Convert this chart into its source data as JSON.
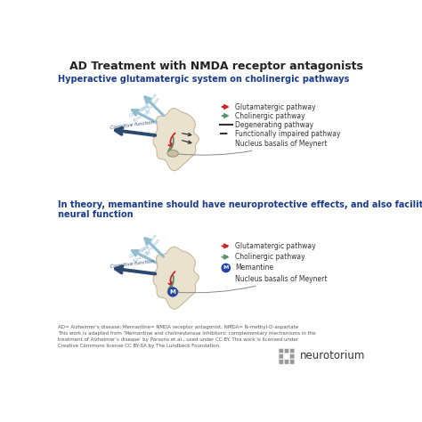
{
  "title": "AD Treatment with NMDA receptor antagonists",
  "subtitle1": "Hyperactive glutamatergic system on cholinergic pathways",
  "subtitle2": "In theory, memantine should have neuroprotective effects, and also facilitate\nneural function",
  "footnote": "AD= Alzheimer’s disease; Memantine= NMDA receptor antagonist; NMDA= N-methyl-D-aspartate\nThis work is adapted from ‘Memantine and cholinesterase inhibitors: complementary mechanisms in the\ntreatment of Alzheimer’s disease’ by Parsons et al., used under CC-BY. This work is licensed under\nCreative Commons license CC BY-SA by The Lundbeck Foundation.",
  "title_color": "#222222",
  "subtitle_color": "#1a3a8a",
  "footnote_color": "#555555",
  "arrow_blue_light": "#92bdd0",
  "arrow_dark": "#2c4a6e",
  "brain_fill": "#e8e2ce",
  "brain_edge": "#c8b898",
  "nucleus_fill": "#c8bea0",
  "nucleus_edge": "#a09070",
  "red_path": "#cc2222",
  "green_path": "#5a9070",
  "black_path": "#333333",
  "legend_text_color": "#333333",
  "memantine_color": "#2244aa",
  "neurotorium_color": "#333333",
  "logo_color": "#888888"
}
